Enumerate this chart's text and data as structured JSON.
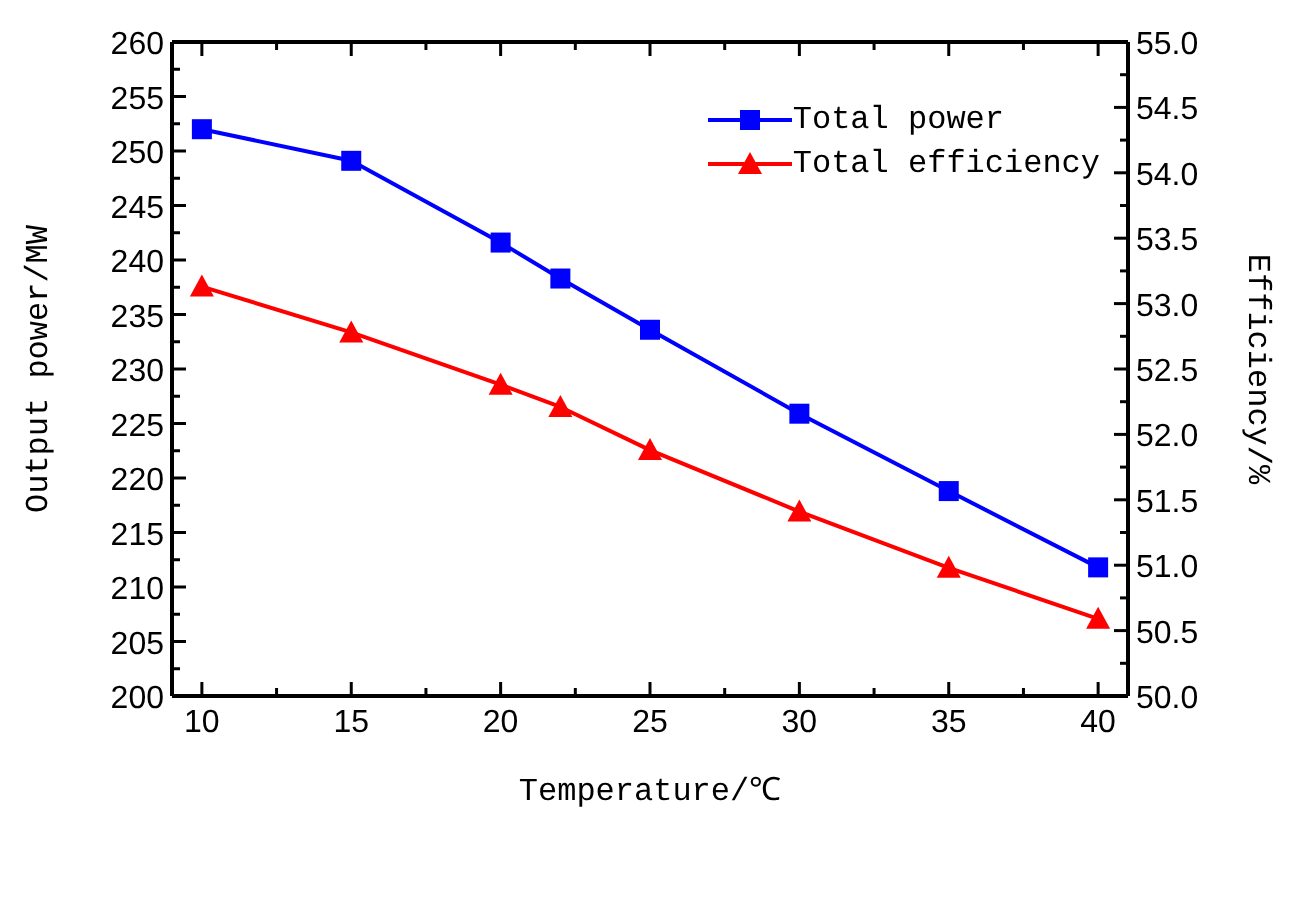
{
  "chart_data": {
    "type": "line",
    "xlabel": "Temperature/℃",
    "ylabel": "Output power/MW",
    "y2label": "Efficiency/%",
    "x": [
      10,
      15,
      20,
      22,
      25,
      30,
      35,
      40
    ],
    "series": [
      {
        "name": "Total power",
        "color": "#0000ff",
        "marker": "square",
        "values": [
          252,
          249.1,
          241.6,
          238.3,
          233.6,
          225.9,
          218.8,
          211.8
        ]
      },
      {
        "name": "Total efficiency",
        "color": "#ff0000",
        "marker": "triangle",
        "axis": "y2",
        "values": [
          53.13,
          52.78,
          52.38,
          52.21,
          51.88,
          51.41,
          50.98,
          50.59
        ]
      }
    ],
    "xlim": [
      9,
      41
    ],
    "xticks": [
      10,
      {
        "value": 12.5,
        "label": null
      },
      15,
      {
        "value": 17.5,
        "label": null
      },
      20,
      {
        "value": 22.5,
        "label": null
      },
      25,
      {
        "value": 27.5,
        "label": null
      },
      30,
      {
        "value": 32.5,
        "label": null
      },
      35,
      {
        "value": 37.5,
        "label": null
      },
      40
    ],
    "ylim": [
      200,
      260
    ],
    "yticks": [
      200,
      {
        "value": 202.5,
        "label": null
      },
      205,
      {
        "value": 207.5,
        "label": null
      },
      210,
      {
        "value": 212.5,
        "label": null
      },
      215,
      {
        "value": 217.5,
        "label": null
      },
      220,
      {
        "value": 222.5,
        "label": null
      },
      225,
      {
        "value": 227.5,
        "label": null
      },
      230,
      {
        "value": 232.5,
        "label": null
      },
      235,
      {
        "value": 237.5,
        "label": null
      },
      240,
      {
        "value": 242.5,
        "label": null
      },
      245,
      {
        "value": 247.5,
        "label": null
      },
      250,
      {
        "value": 252.5,
        "label": null
      },
      255,
      {
        "value": 257.5,
        "label": null
      },
      260
    ],
    "y2lim": [
      50,
      55
    ],
    "y2ticks": [
      {
        "value": 50,
        "label": "50.0"
      },
      {
        "value": 50.25,
        "label": null
      },
      50.5,
      {
        "value": 50.75,
        "label": null
      },
      {
        "value": 51,
        "label": "51.0"
      },
      {
        "value": 51.25,
        "label": null
      },
      51.5,
      {
        "value": 51.75,
        "label": null
      },
      {
        "value": 52,
        "label": "52.0"
      },
      {
        "value": 52.25,
        "label": null
      },
      52.5,
      {
        "value": 52.75,
        "label": null
      },
      {
        "value": 53,
        "label": "53.0"
      },
      {
        "value": 53.25,
        "label": null
      },
      53.5,
      {
        "value": 53.75,
        "label": null
      },
      {
        "value": 54,
        "label": "54.0"
      },
      {
        "value": 54.25,
        "label": null
      },
      54.5,
      {
        "value": 54.75,
        "label": null
      },
      {
        "value": 55,
        "label": "55.0"
      }
    ],
    "grid": false,
    "legend": "top right",
    "line_style": "solid"
  }
}
